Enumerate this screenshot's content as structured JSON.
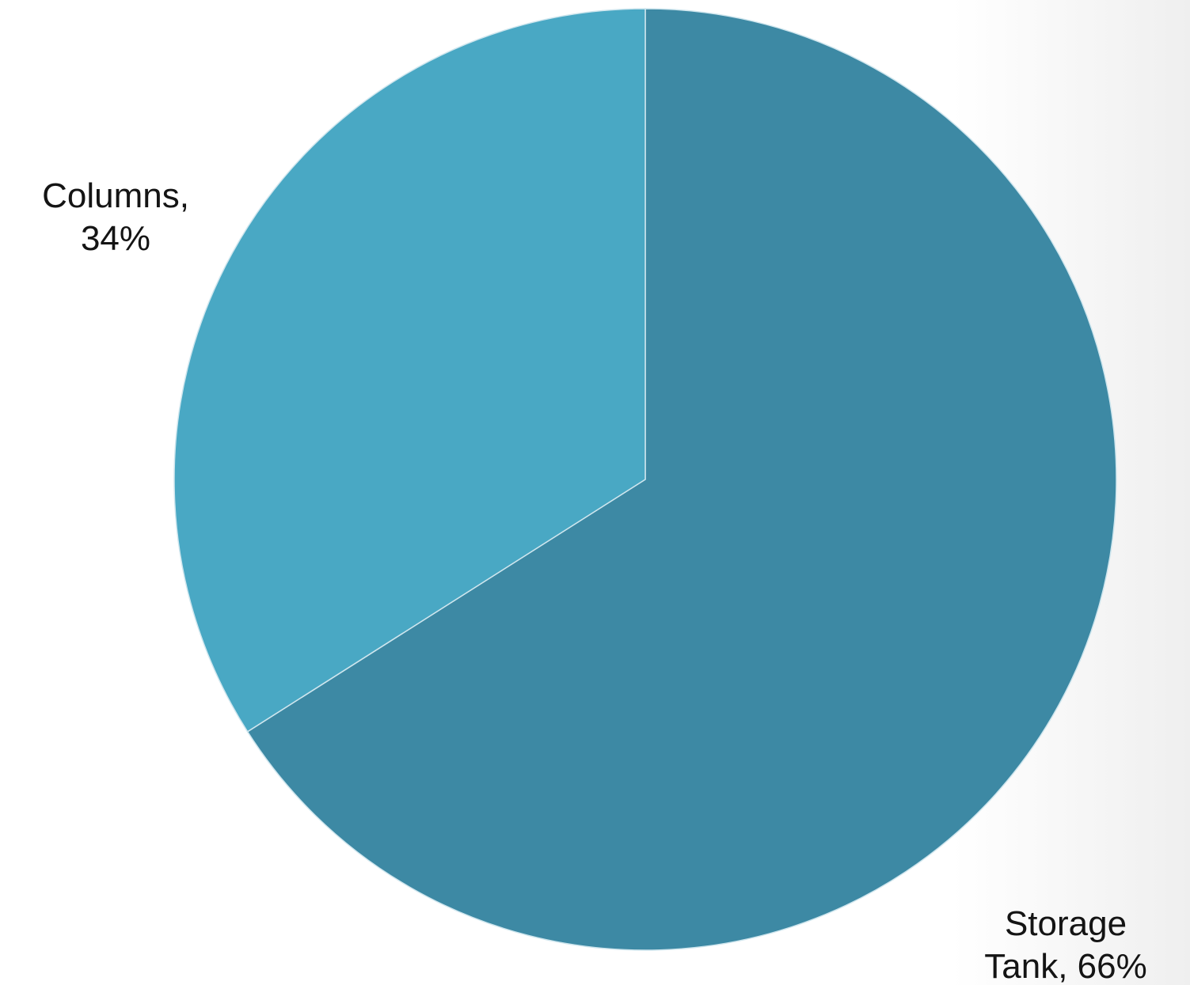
{
  "chart_data": {
    "type": "pie",
    "title": "",
    "legend": "none",
    "start_angle": "12 o'clock",
    "direction": "clockwise",
    "slices": [
      {
        "name": "Storage Tank",
        "value": 66,
        "color": "#3d89a4",
        "label_lines": [
          "Storage",
          "Tank, 66%"
        ]
      },
      {
        "name": "Columns",
        "value": 34,
        "color": "#49a8c4",
        "label_lines": [
          "Columns,",
          "34%"
        ]
      }
    ]
  },
  "colors": {
    "background": "#ffffff",
    "background_right_edge": "#efefef",
    "slice_separator": "#cfe6ee",
    "label_text": "#141414"
  }
}
